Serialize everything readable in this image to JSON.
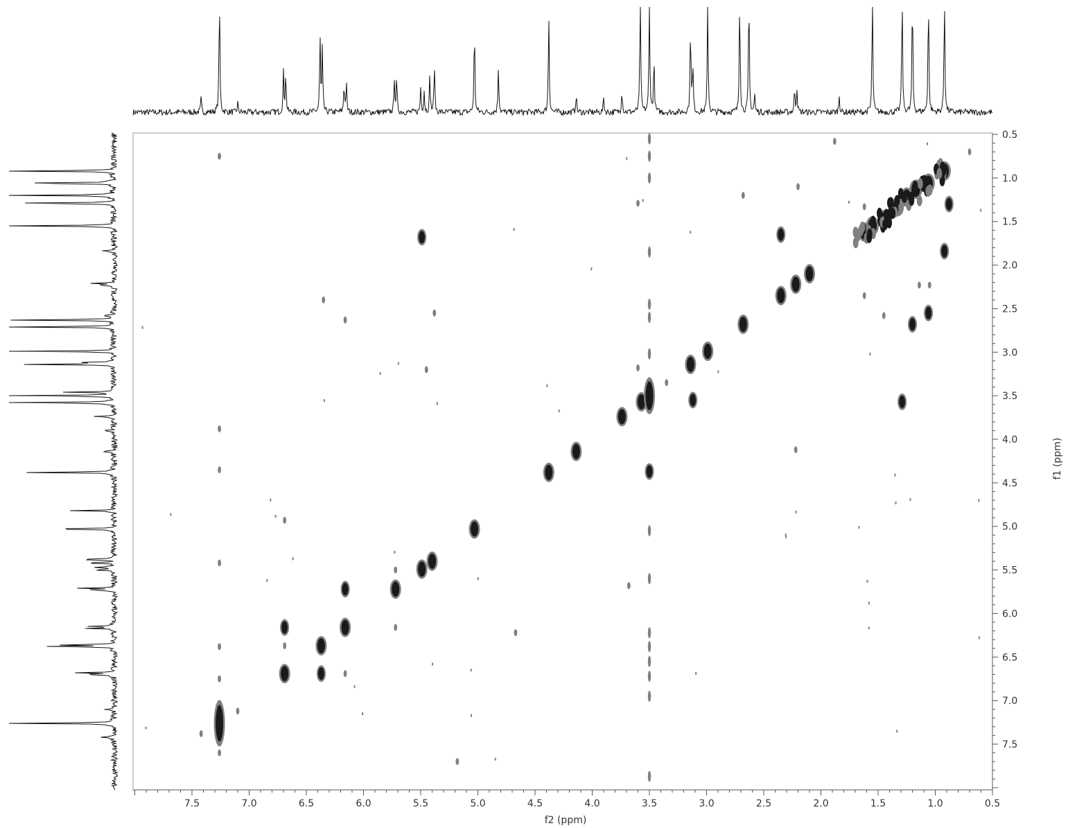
{
  "chart_data": {
    "type": "heatmap",
    "subtype": "2D NMR COSY contour plot with projections",
    "xlabel": "f2 (ppm)",
    "ylabel": "f1 (ppm)",
    "xlim": [
      8.0,
      0.5
    ],
    "ylim": [
      0.5,
      8.0
    ],
    "x_axis_reversed": true,
    "y_axis_direction": "increasing downward",
    "x_ticks": [
      7.5,
      7.0,
      6.5,
      6.0,
      5.5,
      5.0,
      4.5,
      4.0,
      3.5,
      3.0,
      2.5,
      2.0,
      1.5,
      1.0,
      0.5
    ],
    "y_ticks": [
      0.5,
      1.0,
      1.5,
      2.0,
      2.5,
      3.0,
      3.5,
      4.0,
      4.5,
      5.0,
      5.5,
      6.0,
      6.5,
      7.0,
      7.5
    ],
    "x_tick_labels": [
      "7.5",
      "7.0",
      "6.5",
      "6.0",
      "5.5",
      "5.0",
      "4.5",
      "4.0",
      "3.5",
      "3.0",
      "2.5",
      "2.0",
      "1.5",
      "1.0",
      "0.5"
    ],
    "y_tick_labels": [
      "0.5",
      "1.0",
      "1.5",
      "2.0",
      "2.5",
      "3.0",
      "3.5",
      "4.0",
      "4.5",
      "5.0",
      "5.5",
      "6.0",
      "6.5",
      "7.0",
      "7.5"
    ],
    "grid": false,
    "colors": {
      "strong_contour": "#1a1a1a",
      "weak_contour": "#808080",
      "spectrum_line": "#111111",
      "frame": "#999999"
    },
    "projection_peaks": [
      {
        "shift": 7.26,
        "height": 1.0
      },
      {
        "shift": 7.42,
        "height": 0.12
      },
      {
        "shift": 7.1,
        "height": 0.08
      },
      {
        "shift": 6.7,
        "height": 0.33
      },
      {
        "shift": 6.68,
        "height": 0.33
      },
      {
        "shift": 6.38,
        "height": 0.63
      },
      {
        "shift": 6.36,
        "height": 0.53
      },
      {
        "shift": 6.17,
        "height": 0.24
      },
      {
        "shift": 6.15,
        "height": 0.24
      },
      {
        "shift": 5.73,
        "height": 0.28
      },
      {
        "shift": 5.71,
        "height": 0.28
      },
      {
        "shift": 5.5,
        "height": 0.21
      },
      {
        "shift": 5.47,
        "height": 0.18
      },
      {
        "shift": 5.42,
        "height": 0.3
      },
      {
        "shift": 5.38,
        "height": 0.4
      },
      {
        "shift": 5.03,
        "height": 0.72
      },
      {
        "shift": 4.82,
        "height": 0.39
      },
      {
        "shift": 4.38,
        "height": 0.83
      },
      {
        "shift": 4.14,
        "height": 0.15
      },
      {
        "shift": 3.9,
        "height": 0.12
      },
      {
        "shift": 3.74,
        "height": 0.2
      },
      {
        "shift": 3.58,
        "height": 1.0
      },
      {
        "shift": 3.5,
        "height": 1.0
      },
      {
        "shift": 3.46,
        "height": 0.45
      },
      {
        "shift": 3.14,
        "height": 0.76
      },
      {
        "shift": 3.12,
        "height": 0.38
      },
      {
        "shift": 2.99,
        "height": 0.91
      },
      {
        "shift": 2.71,
        "height": 1.0
      },
      {
        "shift": 2.63,
        "height": 1.0
      },
      {
        "shift": 2.58,
        "height": 0.15
      },
      {
        "shift": 2.23,
        "height": 0.2
      },
      {
        "shift": 2.21,
        "height": 0.2
      },
      {
        "shift": 1.84,
        "height": 0.15
      },
      {
        "shift": 1.55,
        "height": 1.0
      },
      {
        "shift": 1.29,
        "height": 1.0
      },
      {
        "shift": 1.2,
        "height": 1.0
      },
      {
        "shift": 1.06,
        "height": 1.0
      },
      {
        "shift": 0.92,
        "height": 1.0
      }
    ],
    "diagonal_peaks": [
      {
        "f2": 7.26,
        "f1": 7.26,
        "intensity": "strong"
      },
      {
        "f2": 6.69,
        "f1": 6.69,
        "intensity": "strong"
      },
      {
        "f2": 6.37,
        "f1": 6.37,
        "intensity": "strong"
      },
      {
        "f2": 6.16,
        "f1": 6.16,
        "intensity": "strong"
      },
      {
        "f2": 5.72,
        "f1": 5.72,
        "intensity": "strong"
      },
      {
        "f2": 5.49,
        "f1": 5.49,
        "intensity": "strong"
      },
      {
        "f2": 5.4,
        "f1": 5.4,
        "intensity": "strong"
      },
      {
        "f2": 5.03,
        "f1": 5.03,
        "intensity": "strong"
      },
      {
        "f2": 4.38,
        "f1": 4.38,
        "intensity": "strong"
      },
      {
        "f2": 4.14,
        "f1": 4.14,
        "intensity": "strong"
      },
      {
        "f2": 3.74,
        "f1": 3.74,
        "intensity": "strong"
      },
      {
        "f2": 3.57,
        "f1": 3.57,
        "intensity": "strong"
      },
      {
        "f2": 3.5,
        "f1": 3.5,
        "intensity": "strong"
      },
      {
        "f2": 3.14,
        "f1": 3.14,
        "intensity": "strong"
      },
      {
        "f2": 2.99,
        "f1": 2.99,
        "intensity": "strong"
      },
      {
        "f2": 2.68,
        "f1": 2.68,
        "intensity": "strong"
      },
      {
        "f2": 2.35,
        "f1": 2.35,
        "intensity": "strong"
      },
      {
        "f2": 2.22,
        "f1": 2.22,
        "intensity": "strong"
      },
      {
        "f2": 2.1,
        "f1": 2.1,
        "intensity": "strong"
      },
      {
        "f2": 1.62,
        "f1": 1.62,
        "intensity": "strong"
      },
      {
        "f2": 1.55,
        "f1": 1.55,
        "intensity": "strong"
      },
      {
        "f2": 1.45,
        "f1": 1.48,
        "intensity": "strong"
      },
      {
        "f2": 1.33,
        "f1": 1.33,
        "intensity": "strong"
      },
      {
        "f2": 1.25,
        "f1": 1.22,
        "intensity": "strong"
      },
      {
        "f2": 1.17,
        "f1": 1.13,
        "intensity": "strong"
      },
      {
        "f2": 1.06,
        "f1": 1.06,
        "intensity": "strong"
      },
      {
        "f2": 0.92,
        "f1": 0.92,
        "intensity": "strong"
      }
    ],
    "cross_peaks": [
      {
        "f2": 6.69,
        "f1": 6.16,
        "intensity": "strong"
      },
      {
        "f2": 6.69,
        "f1": 6.37,
        "intensity": "weak"
      },
      {
        "f2": 6.37,
        "f1": 6.69,
        "intensity": "strong"
      },
      {
        "f2": 6.16,
        "f1": 6.69,
        "intensity": "weak"
      },
      {
        "f2": 6.16,
        "f1": 5.72,
        "intensity": "strong"
      },
      {
        "f2": 5.72,
        "f1": 6.16,
        "intensity": "weak"
      },
      {
        "f2": 5.72,
        "f1": 5.5,
        "intensity": "weak"
      },
      {
        "f2": 5.49,
        "f1": 1.68,
        "intensity": "strong"
      },
      {
        "f2": 3.5,
        "f1": 4.37,
        "intensity": "strong"
      },
      {
        "f2": 3.12,
        "f1": 3.55,
        "intensity": "strong"
      },
      {
        "f2": 3.6,
        "f1": 1.29,
        "intensity": "weak"
      },
      {
        "f2": 3.6,
        "f1": 3.18,
        "intensity": "weak"
      },
      {
        "f2": 2.35,
        "f1": 1.65,
        "intensity": "strong"
      },
      {
        "f2": 2.68,
        "f1": 1.2,
        "intensity": "weak"
      },
      {
        "f2": 1.29,
        "f1": 3.57,
        "intensity": "strong"
      },
      {
        "f2": 1.2,
        "f1": 2.68,
        "intensity": "strong"
      },
      {
        "f2": 1.06,
        "f1": 2.55,
        "intensity": "strong"
      },
      {
        "f2": 0.92,
        "f1": 1.84,
        "intensity": "strong"
      },
      {
        "f2": 0.88,
        "f1": 1.3,
        "intensity": "strong"
      },
      {
        "f2": 1.62,
        "f1": 2.35,
        "intensity": "weak"
      },
      {
        "f2": 1.45,
        "f1": 2.58,
        "intensity": "weak"
      },
      {
        "f2": 1.62,
        "f1": 1.33,
        "intensity": "weak"
      },
      {
        "f2": 7.26,
        "f1": 0.75,
        "intensity": "weak"
      },
      {
        "f2": 7.26,
        "f1": 3.88,
        "intensity": "weak"
      },
      {
        "f2": 7.26,
        "f1": 4.35,
        "intensity": "weak"
      },
      {
        "f2": 7.26,
        "f1": 5.42,
        "intensity": "weak"
      },
      {
        "f2": 7.26,
        "f1": 6.38,
        "intensity": "weak"
      },
      {
        "f2": 7.26,
        "f1": 6.75,
        "intensity": "weak"
      },
      {
        "f2": 7.26,
        "f1": 7.6,
        "intensity": "weak"
      },
      {
        "f2": 7.42,
        "f1": 7.38,
        "intensity": "weak"
      },
      {
        "f2": 7.1,
        "f1": 7.12,
        "intensity": "weak"
      },
      {
        "f2": 6.69,
        "f1": 4.93,
        "intensity": "weak"
      },
      {
        "f2": 5.38,
        "f1": 2.55,
        "intensity": "weak"
      },
      {
        "f2": 6.35,
        "f1": 2.4,
        "intensity": "weak"
      },
      {
        "f2": 6.16,
        "f1": 2.63,
        "intensity": "weak"
      },
      {
        "f2": 5.18,
        "f1": 7.7,
        "intensity": "weak"
      },
      {
        "f2": 3.68,
        "f1": 5.68,
        "intensity": "weak"
      },
      {
        "f2": 3.35,
        "f1": 3.35,
        "intensity": "weak"
      },
      {
        "f2": 2.2,
        "f1": 1.1,
        "intensity": "weak"
      },
      {
        "f2": 1.88,
        "f1": 0.58,
        "intensity": "weak"
      },
      {
        "f2": 2.22,
        "f1": 4.12,
        "intensity": "weak"
      },
      {
        "f2": 1.14,
        "f1": 2.23,
        "intensity": "weak"
      },
      {
        "f2": 1.05,
        "f1": 2.23,
        "intensity": "weak"
      },
      {
        "f2": 0.7,
        "f1": 0.7,
        "intensity": "weak"
      },
      {
        "f2": 4.67,
        "f1": 6.22,
        "intensity": "weak"
      },
      {
        "f2": 5.45,
        "f1": 3.2,
        "intensity": "weak"
      }
    ],
    "vertical_streak": {
      "f2": 3.5,
      "f1_range": [
        0.5,
        7.9
      ],
      "dashes": [
        0.55,
        0.75,
        1.0,
        1.85,
        2.45,
        2.6,
        3.02,
        5.05,
        5.6,
        6.22,
        6.38,
        6.55,
        6.72,
        6.95,
        7.87
      ]
    }
  }
}
